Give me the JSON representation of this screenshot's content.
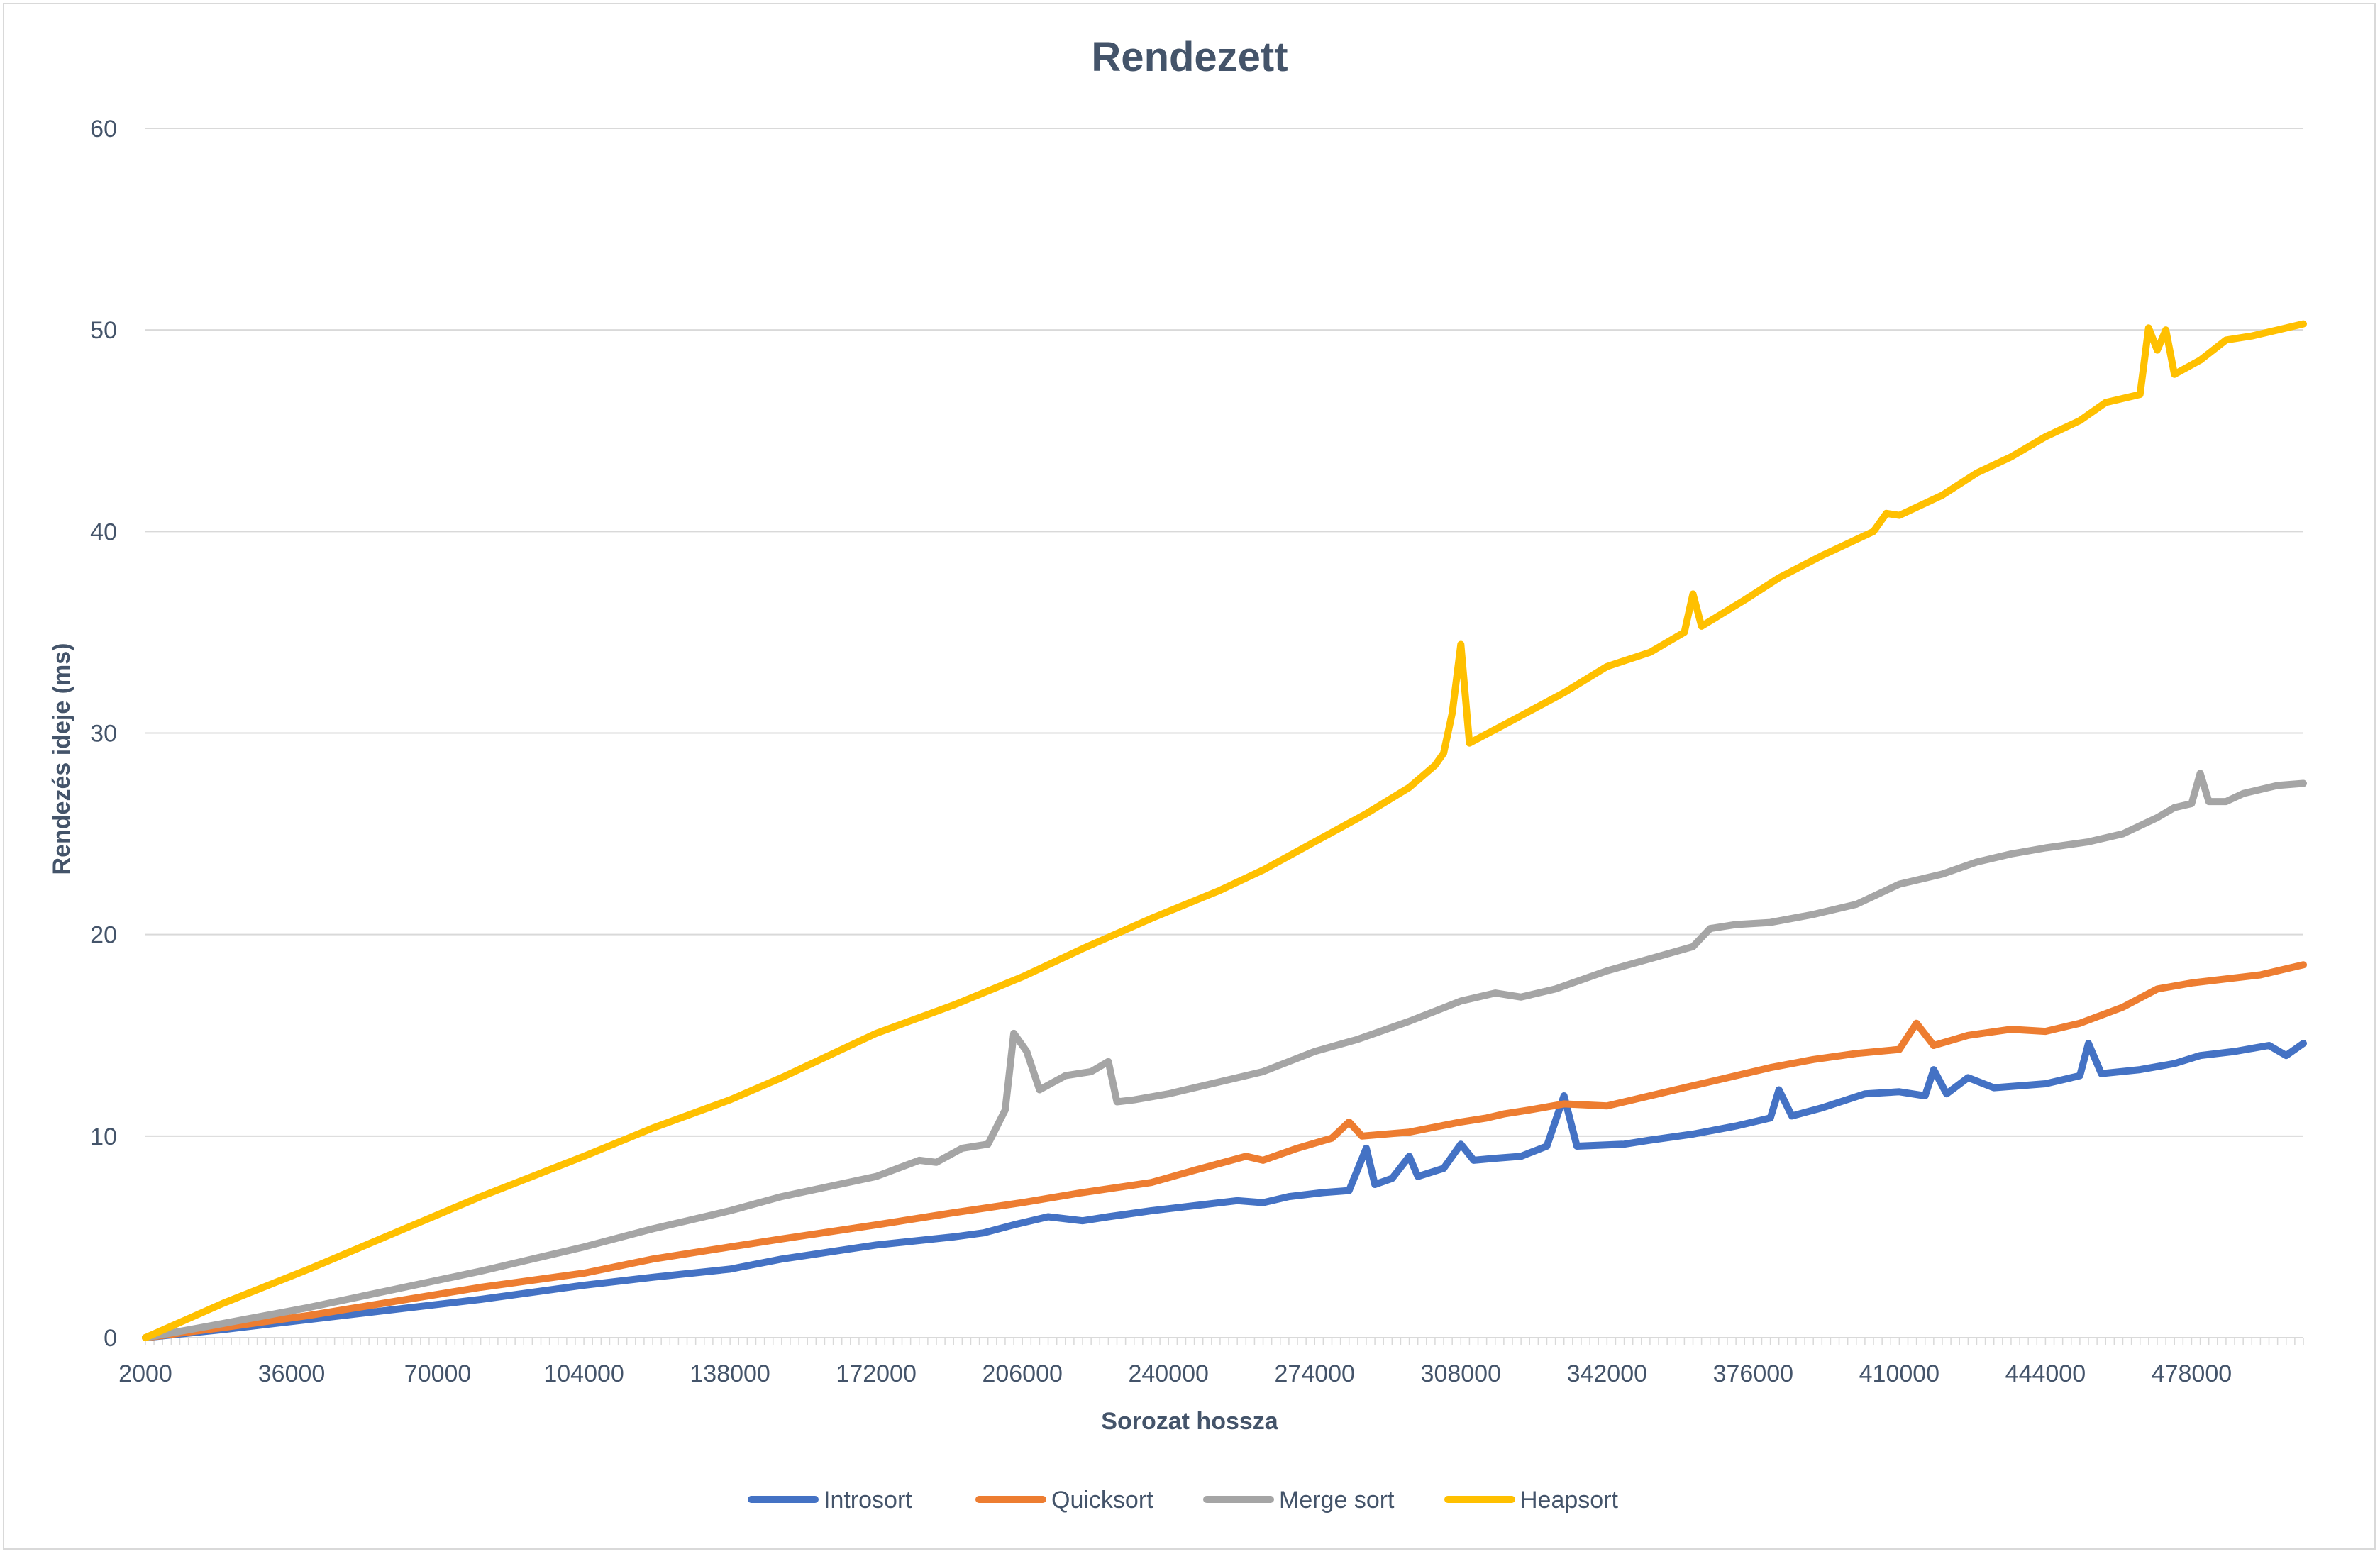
{
  "chart_data": {
    "type": "line",
    "title": "Rendezett",
    "xlabel": "Sorozat hossza",
    "ylabel": "Rendezés ideje (ms)",
    "ylim": [
      0,
      60
    ],
    "y_ticks": [
      0,
      10,
      20,
      30,
      40,
      50,
      60
    ],
    "x_tick_labels": [
      "2000",
      "36000",
      "70000",
      "104000",
      "138000",
      "172000",
      "206000",
      "240000",
      "274000",
      "308000",
      "342000",
      "376000",
      "410000",
      "444000",
      "478000"
    ],
    "x_range": [
      2000,
      504000
    ],
    "grid": "horizontal",
    "legend_position": "bottom",
    "series": [
      {
        "name": "Introsort",
        "color": "#4472c4",
        "points": [
          [
            2000,
            0.0
          ],
          [
            20000,
            0.4
          ],
          [
            40000,
            0.9
          ],
          [
            60000,
            1.4
          ],
          [
            80000,
            1.9
          ],
          [
            104000,
            2.6
          ],
          [
            120000,
            3.0
          ],
          [
            138000,
            3.4
          ],
          [
            150000,
            3.9
          ],
          [
            172000,
            4.6
          ],
          [
            190000,
            5.0
          ],
          [
            197000,
            5.2
          ],
          [
            204000,
            5.6
          ],
          [
            212000,
            6.0
          ],
          [
            220000,
            5.8
          ],
          [
            226000,
            6.0
          ],
          [
            236000,
            6.3
          ],
          [
            248000,
            6.6
          ],
          [
            256000,
            6.8
          ],
          [
            262000,
            6.7
          ],
          [
            268000,
            7.0
          ],
          [
            276000,
            7.2
          ],
          [
            282000,
            7.3
          ],
          [
            286000,
            9.4
          ],
          [
            288000,
            7.6
          ],
          [
            292000,
            7.9
          ],
          [
            296000,
            9.0
          ],
          [
            298000,
            8.0
          ],
          [
            304000,
            8.4
          ],
          [
            308000,
            9.6
          ],
          [
            311000,
            8.8
          ],
          [
            316000,
            8.9
          ],
          [
            322000,
            9.0
          ],
          [
            328000,
            9.5
          ],
          [
            332000,
            12.0
          ],
          [
            335000,
            9.5
          ],
          [
            346000,
            9.6
          ],
          [
            352000,
            9.8
          ],
          [
            362000,
            10.1
          ],
          [
            372000,
            10.5
          ],
          [
            380000,
            10.9
          ],
          [
            382000,
            12.3
          ],
          [
            385000,
            11.0
          ],
          [
            392000,
            11.4
          ],
          [
            402000,
            12.1
          ],
          [
            410000,
            12.2
          ],
          [
            416000,
            12.0
          ],
          [
            418000,
            13.3
          ],
          [
            421000,
            12.1
          ],
          [
            426000,
            12.9
          ],
          [
            432000,
            12.4
          ],
          [
            444000,
            12.6
          ],
          [
            452000,
            13.0
          ],
          [
            454000,
            14.6
          ],
          [
            457000,
            13.1
          ],
          [
            466000,
            13.3
          ],
          [
            474000,
            13.6
          ],
          [
            480000,
            14.0
          ],
          [
            488000,
            14.2
          ],
          [
            496000,
            14.5
          ],
          [
            500000,
            14.0
          ],
          [
            504000,
            14.6
          ]
        ]
      },
      {
        "name": "Quicksort",
        "color": "#ed7d31",
        "points": [
          [
            2000,
            0.0
          ],
          [
            20000,
            0.5
          ],
          [
            40000,
            1.1
          ],
          [
            60000,
            1.8
          ],
          [
            80000,
            2.5
          ],
          [
            104000,
            3.2
          ],
          [
            120000,
            3.9
          ],
          [
            138000,
            4.5
          ],
          [
            150000,
            4.9
          ],
          [
            172000,
            5.6
          ],
          [
            190000,
            6.2
          ],
          [
            206000,
            6.7
          ],
          [
            220000,
            7.2
          ],
          [
            236000,
            7.7
          ],
          [
            246000,
            8.3
          ],
          [
            258000,
            9.0
          ],
          [
            262000,
            8.8
          ],
          [
            270000,
            9.4
          ],
          [
            278000,
            9.9
          ],
          [
            282000,
            10.7
          ],
          [
            285000,
            10.0
          ],
          [
            296000,
            10.2
          ],
          [
            308000,
            10.7
          ],
          [
            314000,
            10.9
          ],
          [
            318000,
            11.1
          ],
          [
            324000,
            11.3
          ],
          [
            332000,
            11.6
          ],
          [
            342000,
            11.5
          ],
          [
            352000,
            12.0
          ],
          [
            362000,
            12.5
          ],
          [
            372000,
            13.0
          ],
          [
            380000,
            13.4
          ],
          [
            390000,
            13.8
          ],
          [
            400000,
            14.1
          ],
          [
            410000,
            14.3
          ],
          [
            414000,
            15.6
          ],
          [
            418000,
            14.5
          ],
          [
            426000,
            15.0
          ],
          [
            436000,
            15.3
          ],
          [
            444000,
            15.2
          ],
          [
            452000,
            15.6
          ],
          [
            462000,
            16.4
          ],
          [
            470000,
            17.3
          ],
          [
            478000,
            17.6
          ],
          [
            486000,
            17.8
          ],
          [
            494000,
            18.0
          ],
          [
            498000,
            18.2
          ],
          [
            504000,
            18.5
          ]
        ]
      },
      {
        "name": "Merge sort",
        "color": "#a5a5a5",
        "points": [
          [
            2000,
            0.0
          ],
          [
            20000,
            0.7
          ],
          [
            40000,
            1.5
          ],
          [
            60000,
            2.4
          ],
          [
            80000,
            3.3
          ],
          [
            104000,
            4.5
          ],
          [
            120000,
            5.4
          ],
          [
            138000,
            6.3
          ],
          [
            150000,
            7.0
          ],
          [
            172000,
            8.0
          ],
          [
            182000,
            8.8
          ],
          [
            186000,
            8.7
          ],
          [
            192000,
            9.4
          ],
          [
            198000,
            9.6
          ],
          [
            202000,
            11.3
          ],
          [
            204000,
            15.1
          ],
          [
            207000,
            14.2
          ],
          [
            210000,
            12.3
          ],
          [
            216000,
            13.0
          ],
          [
            222000,
            13.2
          ],
          [
            226000,
            13.7
          ],
          [
            228000,
            11.7
          ],
          [
            232000,
            11.8
          ],
          [
            240000,
            12.1
          ],
          [
            250000,
            12.6
          ],
          [
            262000,
            13.2
          ],
          [
            274000,
            14.2
          ],
          [
            284000,
            14.8
          ],
          [
            296000,
            15.7
          ],
          [
            308000,
            16.7
          ],
          [
            316000,
            17.1
          ],
          [
            322000,
            16.9
          ],
          [
            330000,
            17.3
          ],
          [
            342000,
            18.2
          ],
          [
            352000,
            18.8
          ],
          [
            362000,
            19.4
          ],
          [
            366000,
            20.3
          ],
          [
            372000,
            20.5
          ],
          [
            380000,
            20.6
          ],
          [
            390000,
            21.0
          ],
          [
            400000,
            21.5
          ],
          [
            410000,
            22.5
          ],
          [
            420000,
            23.0
          ],
          [
            428000,
            23.6
          ],
          [
            436000,
            24.0
          ],
          [
            444000,
            24.3
          ],
          [
            454000,
            24.6
          ],
          [
            462000,
            25.0
          ],
          [
            470000,
            25.8
          ],
          [
            474000,
            26.3
          ],
          [
            478000,
            26.5
          ],
          [
            480000,
            28.0
          ],
          [
            482000,
            26.6
          ],
          [
            486000,
            26.6
          ],
          [
            490000,
            27.0
          ],
          [
            498000,
            27.4
          ],
          [
            504000,
            27.5
          ]
        ]
      },
      {
        "name": "Heapsort",
        "color": "#ffc000",
        "points": [
          [
            2000,
            0.0
          ],
          [
            20000,
            1.7
          ],
          [
            40000,
            3.4
          ],
          [
            60000,
            5.2
          ],
          [
            80000,
            7.0
          ],
          [
            104000,
            9.0
          ],
          [
            120000,
            10.4
          ],
          [
            138000,
            11.8
          ],
          [
            150000,
            12.9
          ],
          [
            172000,
            15.1
          ],
          [
            190000,
            16.5
          ],
          [
            206000,
            17.9
          ],
          [
            220000,
            19.3
          ],
          [
            236000,
            20.8
          ],
          [
            252000,
            22.2
          ],
          [
            262000,
            23.2
          ],
          [
            274000,
            24.6
          ],
          [
            286000,
            26.0
          ],
          [
            296000,
            27.3
          ],
          [
            302000,
            28.4
          ],
          [
            304000,
            29.0
          ],
          [
            306000,
            31.0
          ],
          [
            308000,
            34.4
          ],
          [
            310000,
            29.5
          ],
          [
            318000,
            30.4
          ],
          [
            332000,
            32.0
          ],
          [
            342000,
            33.3
          ],
          [
            352000,
            34.0
          ],
          [
            360000,
            35.0
          ],
          [
            362000,
            36.9
          ],
          [
            364000,
            35.3
          ],
          [
            374000,
            36.6
          ],
          [
            382000,
            37.7
          ],
          [
            392000,
            38.8
          ],
          [
            404000,
            40.0
          ],
          [
            407000,
            40.9
          ],
          [
            410000,
            40.8
          ],
          [
            420000,
            41.8
          ],
          [
            428000,
            42.9
          ],
          [
            436000,
            43.7
          ],
          [
            444000,
            44.7
          ],
          [
            452000,
            45.5
          ],
          [
            458000,
            46.4
          ],
          [
            466000,
            46.8
          ],
          [
            468000,
            50.1
          ],
          [
            470000,
            49.0
          ],
          [
            472000,
            50.0
          ],
          [
            474000,
            47.8
          ],
          [
            480000,
            48.5
          ],
          [
            486000,
            49.5
          ],
          [
            492000,
            49.7
          ],
          [
            498000,
            50.0
          ],
          [
            504000,
            50.3
          ]
        ]
      }
    ]
  }
}
